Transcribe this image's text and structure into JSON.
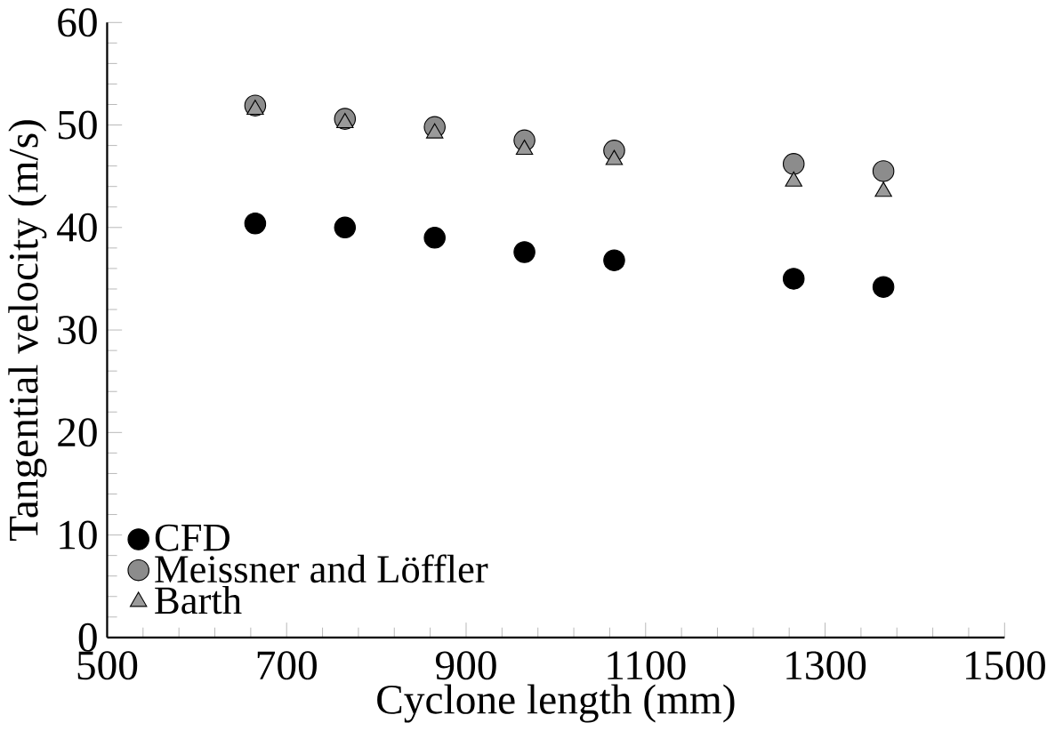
{
  "chart_data": {
    "type": "scatter",
    "xlabel": "Cyclone length (mm)",
    "ylabel": "Tangential velocity (m/s)",
    "x": [
      665,
      765,
      865,
      965,
      1065,
      1265,
      1365
    ],
    "xlim": [
      500,
      1500
    ],
    "xticks": [
      500,
      700,
      900,
      1100,
      1300,
      1500
    ],
    "ylim": [
      0,
      60
    ],
    "yticks": [
      0,
      10,
      20,
      30,
      40,
      50,
      60
    ],
    "legend": "bottom left",
    "grid": false,
    "series": [
      {
        "name": "CFD",
        "color": "#000000",
        "marker": "circle",
        "values": [
          40.4,
          40.0,
          39.0,
          37.6,
          36.8,
          35.0,
          34.2
        ]
      },
      {
        "name": "Meissner and Löffler",
        "color": "#8c8c8c",
        "marker": "circle",
        "values": [
          51.9,
          50.6,
          49.8,
          48.5,
          47.5,
          46.2,
          45.5
        ]
      },
      {
        "name": "Barth",
        "color": "#9a9a9a",
        "marker": "triangle",
        "values": [
          51.5,
          50.2,
          49.2,
          47.6,
          46.6,
          44.5,
          43.5
        ]
      }
    ]
  }
}
